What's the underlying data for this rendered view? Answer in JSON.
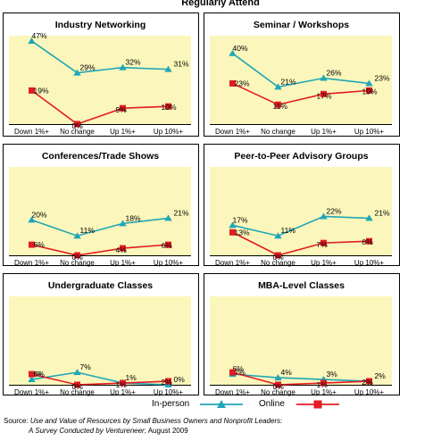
{
  "page_title": "Regularly Attend",
  "colors": {
    "in_person": "#1fa6b8",
    "online": "#e31b23",
    "plot_bg": "#fbf6bb",
    "frame": "#000000"
  },
  "legend": {
    "series_1": "In-person",
    "series_2": "Online"
  },
  "source": {
    "label": "Source:",
    "line1": "Use and Value of Resources by Small Business Owners and Nonprofit Leaders:",
    "line2a": "A Survey Conducted by Ventureneer",
    "line2b": "; August 2009"
  },
  "chart_data": [
    {
      "type": "line",
      "title": "Industry Networking",
      "categories": [
        "Down 1%+",
        "No change",
        "Up 1%+",
        "Up 10%+"
      ],
      "ylim": [
        0,
        50
      ],
      "series": [
        {
          "name": "In-person",
          "values": [
            47,
            29,
            32,
            31
          ],
          "labels": [
            "47%",
            "29%",
            "32%",
            "31%"
          ]
        },
        {
          "name": "Online",
          "values": [
            19,
            0,
            9,
            10
          ],
          "labels": [
            "19%",
            "0%",
            "9%",
            "10%"
          ]
        }
      ]
    },
    {
      "type": "line",
      "title": "Seminar / Workshops",
      "categories": [
        "Down 1%+",
        "No change",
        "Up 1%+",
        "Up 10%+"
      ],
      "ylim": [
        0,
        50
      ],
      "series": [
        {
          "name": "In-person",
          "values": [
            40,
            21,
            26,
            23
          ],
          "labels": [
            "40%",
            "21%",
            "26%",
            "23%"
          ]
        },
        {
          "name": "Online",
          "values": [
            23,
            11,
            17,
            19
          ],
          "labels": [
            "23%",
            "11%",
            "17%",
            "19%"
          ]
        }
      ]
    },
    {
      "type": "line",
      "title": "Conferences/Trade Shows",
      "categories": [
        "Down 1%+",
        "No change",
        "Up 1%+",
        "Up 10%+"
      ],
      "ylim": [
        0,
        50
      ],
      "series": [
        {
          "name": "In-person",
          "values": [
            20,
            11,
            18,
            21
          ],
          "labels": [
            "20%",
            "11%",
            "18%",
            "21%"
          ]
        },
        {
          "name": "Online",
          "values": [
            6,
            0,
            4,
            6
          ],
          "labels": [
            "6%",
            "0%",
            "4%",
            "6%"
          ]
        }
      ]
    },
    {
      "type": "line",
      "title": "Peer-to-Peer Advisory Groups",
      "categories": [
        "Down 1%+",
        "No change",
        "Up 1%+",
        "Up 10%+"
      ],
      "ylim": [
        0,
        50
      ],
      "series": [
        {
          "name": "In-person",
          "values": [
            17,
            11,
            22,
            21
          ],
          "labels": [
            "17%",
            "11%",
            "22%",
            "21%"
          ]
        },
        {
          "name": "Online",
          "values": [
            13,
            0,
            7,
            8
          ],
          "labels": [
            "13%",
            "0%",
            "7%",
            "8%"
          ]
        }
      ]
    },
    {
      "type": "line",
      "title": "Undergraduate Classes",
      "categories": [
        "Down 1%+",
        "No change",
        "Up 1%+",
        "Up 10%+"
      ],
      "ylim": [
        0,
        50
      ],
      "series": [
        {
          "name": "In-person",
          "values": [
            3,
            7,
            1,
            0
          ],
          "labels": [
            "3%",
            "7%",
            "1%",
            "0%"
          ]
        },
        {
          "name": "Online",
          "values": [
            6,
            0,
            1,
            2
          ],
          "labels": [
            "6%",
            "0%",
            "1%",
            "2%"
          ]
        }
      ]
    },
    {
      "type": "line",
      "title": "MBA-Level Classes",
      "categories": [
        "Down 1%+",
        "No change",
        "Up 1%+",
        "Up 10%+"
      ],
      "ylim": [
        0,
        50
      ],
      "series": [
        {
          "name": "In-person",
          "values": [
            6,
            4,
            3,
            2
          ],
          "labels": [
            "6%",
            "4%",
            "3%",
            "2%"
          ]
        },
        {
          "name": "Online",
          "values": [
            7,
            0,
            1,
            2
          ],
          "labels": [
            "7%",
            "0%",
            "1%",
            "2%"
          ]
        }
      ]
    }
  ]
}
